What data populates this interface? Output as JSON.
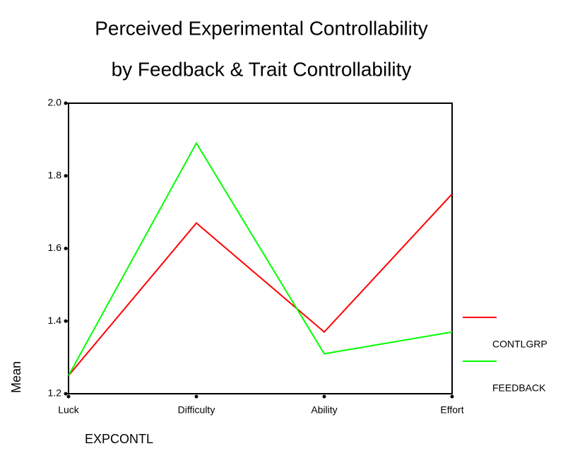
{
  "chart_data": {
    "type": "line",
    "title": "Perceived Experimental Controllability",
    "subtitle": "by Feedback & Trait Controllability",
    "x_label": "EXPCONTL",
    "y_label": "Mean",
    "categories": [
      "Luck",
      "Difficulty",
      "Ability",
      "Effort"
    ],
    "series": [
      {
        "name": "CONTLGRP",
        "color": "#ff0000",
        "values": [
          1.25,
          1.67,
          1.37,
          1.75
        ]
      },
      {
        "name": "FEEDBACK",
        "color": "#00ff00",
        "values": [
          1.25,
          1.89,
          1.31,
          1.37
        ]
      }
    ],
    "ylim": [
      1.2,
      2.0
    ],
    "yticks": [
      {
        "value": 1.2,
        "label": "1.2"
      },
      {
        "value": 1.4,
        "label": "1.4"
      },
      {
        "value": 1.6,
        "label": "1.6"
      },
      {
        "value": 1.8,
        "label": "1.8"
      },
      {
        "value": 2.0,
        "label": "2.0"
      }
    ],
    "grid": false
  }
}
